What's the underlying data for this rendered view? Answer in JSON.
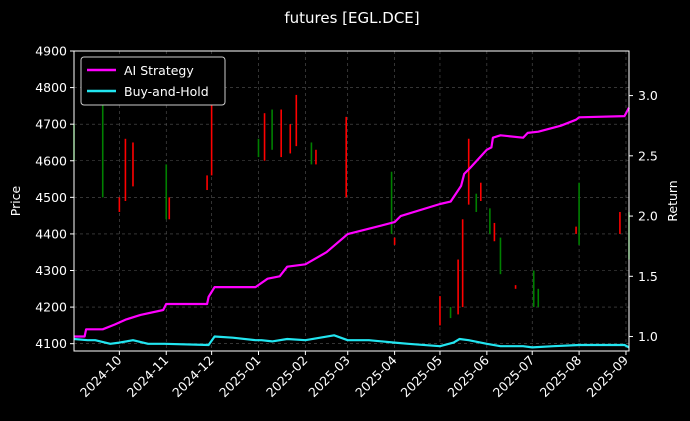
{
  "chart_data": {
    "type": "line",
    "title": "futures [EGL.DCE]",
    "xlabel": "",
    "ylabel_left": "Price",
    "ylabel_right": "Return",
    "x_ticks": [
      "2024-10",
      "2024-11",
      "2024-12",
      "2025-01",
      "2025-02",
      "2025-03",
      "2025-04",
      "2025-05",
      "2025-06",
      "2025-07",
      "2025-08",
      "2025-09"
    ],
    "x_range": [
      "2024-09-01",
      "2025-09-03"
    ],
    "y_left_ticks": [
      "4100",
      "4200",
      "4300",
      "4400",
      "4500",
      "4600",
      "4700",
      "4800",
      "4900"
    ],
    "y_left_range": [
      4080,
      4900
    ],
    "y_right_ticks": [
      "1.0",
      "1.5",
      "2.0",
      "2.5",
      "3.0"
    ],
    "y_right_range": [
      0.88,
      3.37
    ],
    "grid": true,
    "legend_position": "top-left",
    "background": "#000000",
    "series": [
      {
        "name": "AI Strategy",
        "axis": "right",
        "color": "#ff00ff",
        "points": [
          [
            "2024-09-01",
            1.0
          ],
          [
            "2024-09-08",
            1.0
          ],
          [
            "2024-09-09",
            1.06
          ],
          [
            "2024-09-20",
            1.06
          ],
          [
            "2024-09-28",
            1.1
          ],
          [
            "2024-10-05",
            1.14
          ],
          [
            "2024-10-15",
            1.18
          ],
          [
            "2024-10-30",
            1.22
          ],
          [
            "2024-11-01",
            1.27
          ],
          [
            "2024-11-28",
            1.27
          ],
          [
            "2024-11-29",
            1.33
          ],
          [
            "2024-12-03",
            1.41
          ],
          [
            "2024-12-30",
            1.41
          ],
          [
            "2025-01-07",
            1.48
          ],
          [
            "2025-01-15",
            1.5
          ],
          [
            "2025-01-20",
            1.58
          ],
          [
            "2025-02-01",
            1.6
          ],
          [
            "2025-02-15",
            1.7
          ],
          [
            "2025-03-01",
            1.85
          ],
          [
            "2025-04-01",
            1.95
          ],
          [
            "2025-04-05",
            2.0
          ],
          [
            "2025-05-01",
            2.1
          ],
          [
            "2025-05-08",
            2.12
          ],
          [
            "2025-05-15",
            2.25
          ],
          [
            "2025-05-17",
            2.35
          ],
          [
            "2025-05-21",
            2.4
          ],
          [
            "2025-06-01",
            2.55
          ],
          [
            "2025-06-04",
            2.57
          ],
          [
            "2025-06-05",
            2.65
          ],
          [
            "2025-06-10",
            2.67
          ],
          [
            "2025-06-25",
            2.65
          ],
          [
            "2025-06-28",
            2.69
          ],
          [
            "2025-07-05",
            2.7
          ],
          [
            "2025-07-20",
            2.75
          ],
          [
            "2025-07-30",
            2.8
          ],
          [
            "2025-08-01",
            2.82
          ],
          [
            "2025-08-31",
            2.83
          ],
          [
            "2025-09-03",
            2.9
          ]
        ]
      },
      {
        "name": "Buy-and-Hold",
        "axis": "right",
        "color": "#22e5f0",
        "points": [
          [
            "2024-09-01",
            0.98
          ],
          [
            "2024-09-10",
            0.97
          ],
          [
            "2024-09-15",
            0.97
          ],
          [
            "2024-09-25",
            0.94
          ],
          [
            "2024-10-01",
            0.95
          ],
          [
            "2024-10-10",
            0.97
          ],
          [
            "2024-10-20",
            0.94
          ],
          [
            "2024-10-31",
            0.94
          ],
          [
            "2024-11-29",
            0.93
          ],
          [
            "2024-12-03",
            1.0
          ],
          [
            "2024-12-15",
            0.99
          ],
          [
            "2024-12-30",
            0.97
          ],
          [
            "2025-01-03",
            0.97
          ],
          [
            "2025-01-10",
            0.96
          ],
          [
            "2025-01-20",
            0.98
          ],
          [
            "2025-02-01",
            0.97
          ],
          [
            "2025-02-20",
            1.01
          ],
          [
            "2025-03-01",
            0.97
          ],
          [
            "2025-03-15",
            0.97
          ],
          [
            "2025-04-01",
            0.95
          ],
          [
            "2025-04-10",
            0.94
          ],
          [
            "2025-05-01",
            0.92
          ],
          [
            "2025-05-10",
            0.95
          ],
          [
            "2025-05-14",
            0.98
          ],
          [
            "2025-05-20",
            0.97
          ],
          [
            "2025-06-01",
            0.94
          ],
          [
            "2025-06-10",
            0.92
          ],
          [
            "2025-06-25",
            0.92
          ],
          [
            "2025-07-01",
            0.91
          ],
          [
            "2025-07-15",
            0.92
          ],
          [
            "2025-08-01",
            0.93
          ],
          [
            "2025-08-31",
            0.93
          ],
          [
            "2025-09-03",
            0.91
          ]
        ]
      }
    ],
    "candles": [
      {
        "date": "2024-09-01",
        "low": 4600,
        "high": 4700,
        "color": "#008000"
      },
      {
        "date": "2024-09-20",
        "low": 4500,
        "high": 4800,
        "color": "#008000"
      },
      {
        "date": "2024-10-01",
        "low": 4460,
        "high": 4500,
        "color": "#ff0000"
      },
      {
        "date": "2024-10-05",
        "low": 4490,
        "high": 4660,
        "color": "#ff0000"
      },
      {
        "date": "2024-10-10",
        "low": 4530,
        "high": 4650,
        "color": "#ff0000"
      },
      {
        "date": "2024-11-01",
        "low": 4440,
        "high": 4590,
        "color": "#008000"
      },
      {
        "date": "2024-11-03",
        "low": 4440,
        "high": 4500,
        "color": "#ff0000"
      },
      {
        "date": "2024-11-28",
        "low": 4520,
        "high": 4560,
        "color": "#ff0000"
      },
      {
        "date": "2024-12-01",
        "low": 4560,
        "high": 4790,
        "color": "#ff0000"
      },
      {
        "date": "2025-01-01",
        "low": 4610,
        "high": 4660,
        "color": "#008000"
      },
      {
        "date": "2025-01-05",
        "low": 4600,
        "high": 4730,
        "color": "#ff0000"
      },
      {
        "date": "2025-01-10",
        "low": 4630,
        "high": 4740,
        "color": "#008000"
      },
      {
        "date": "2025-01-16",
        "low": 4610,
        "high": 4740,
        "color": "#ff0000"
      },
      {
        "date": "2025-01-22",
        "low": 4620,
        "high": 4700,
        "color": "#ff0000"
      },
      {
        "date": "2025-01-26",
        "low": 4640,
        "high": 4780,
        "color": "#ff0000"
      },
      {
        "date": "2025-02-05",
        "low": 4590,
        "high": 4650,
        "color": "#008000"
      },
      {
        "date": "2025-02-08",
        "low": 4590,
        "high": 4630,
        "color": "#ff0000"
      },
      {
        "date": "2025-02-28",
        "low": 4500,
        "high": 4720,
        "color": "#ff0000"
      },
      {
        "date": "2025-03-30",
        "low": 4400,
        "high": 4570,
        "color": "#008000"
      },
      {
        "date": "2025-04-01",
        "low": 4370,
        "high": 4390,
        "color": "#ff0000"
      },
      {
        "date": "2025-05-01",
        "low": 4150,
        "high": 4230,
        "color": "#ff0000"
      },
      {
        "date": "2025-05-08",
        "low": 4170,
        "high": 4200,
        "color": "#008000"
      },
      {
        "date": "2025-05-13",
        "low": 4180,
        "high": 4330,
        "color": "#ff0000"
      },
      {
        "date": "2025-05-16",
        "low": 4200,
        "high": 4440,
        "color": "#ff0000"
      },
      {
        "date": "2025-05-20",
        "low": 4480,
        "high": 4660,
        "color": "#ff0000"
      },
      {
        "date": "2025-05-25",
        "low": 4460,
        "high": 4510,
        "color": "#008000"
      },
      {
        "date": "2025-05-28",
        "low": 4490,
        "high": 4540,
        "color": "#ff0000"
      },
      {
        "date": "2025-06-03",
        "low": 4400,
        "high": 4470,
        "color": "#008000"
      },
      {
        "date": "2025-06-06",
        "low": 4380,
        "high": 4430,
        "color": "#ff0000"
      },
      {
        "date": "2025-06-10",
        "low": 4290,
        "high": 4390,
        "color": "#008000"
      },
      {
        "date": "2025-06-20",
        "low": 4250,
        "high": 4260,
        "color": "#ff0000"
      },
      {
        "date": "2025-07-02",
        "low": 4200,
        "high": 4300,
        "color": "#008000"
      },
      {
        "date": "2025-07-05",
        "low": 4200,
        "high": 4250,
        "color": "#008000"
      },
      {
        "date": "2025-07-30",
        "low": 4400,
        "high": 4420,
        "color": "#ff0000"
      },
      {
        "date": "2025-08-01",
        "low": 4370,
        "high": 4540,
        "color": "#008000"
      },
      {
        "date": "2025-08-28",
        "low": 4400,
        "high": 4460,
        "color": "#ff0000"
      },
      {
        "date": "2025-09-03",
        "low": 4330,
        "high": 4460,
        "color": "#008000"
      }
    ]
  }
}
